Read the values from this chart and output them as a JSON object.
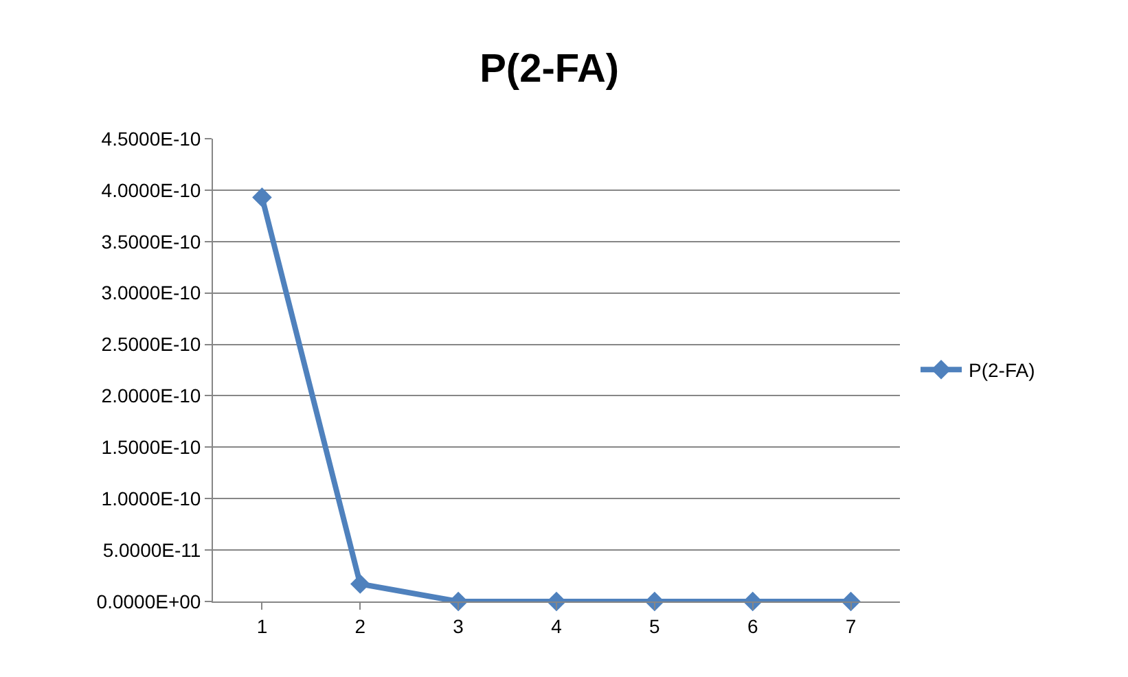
{
  "chart_data": {
    "type": "line",
    "title": "P(2-FA)",
    "categories": [
      "1",
      "2",
      "3",
      "4",
      "5",
      "6",
      "7"
    ],
    "series": [
      {
        "name": "P(2-FA)",
        "color": "#4f81bd",
        "values": [
          3.93e-10,
          1.7e-11,
          0,
          0,
          0,
          0,
          0
        ]
      }
    ],
    "ylim": [
      0,
      4.5e-10
    ],
    "yticks": [
      {
        "value": 0,
        "label": "0.0000E+00"
      },
      {
        "value": 5e-11,
        "label": "5.0000E-11"
      },
      {
        "value": 1e-10,
        "label": "1.0000E-10"
      },
      {
        "value": 1.5e-10,
        "label": "1.5000E-10"
      },
      {
        "value": 2e-10,
        "label": "2.0000E-10"
      },
      {
        "value": 2.5e-10,
        "label": "2.5000E-10"
      },
      {
        "value": 3e-10,
        "label": "3.0000E-10"
      },
      {
        "value": 3.5e-10,
        "label": "3.5000E-10"
      },
      {
        "value": 4e-10,
        "label": "4.0000E-10"
      },
      {
        "value": 4.5e-10,
        "label": "4.5000E-10"
      }
    ],
    "grid": "y",
    "legend": "right",
    "marker": "diamond",
    "line_style": "solid"
  }
}
